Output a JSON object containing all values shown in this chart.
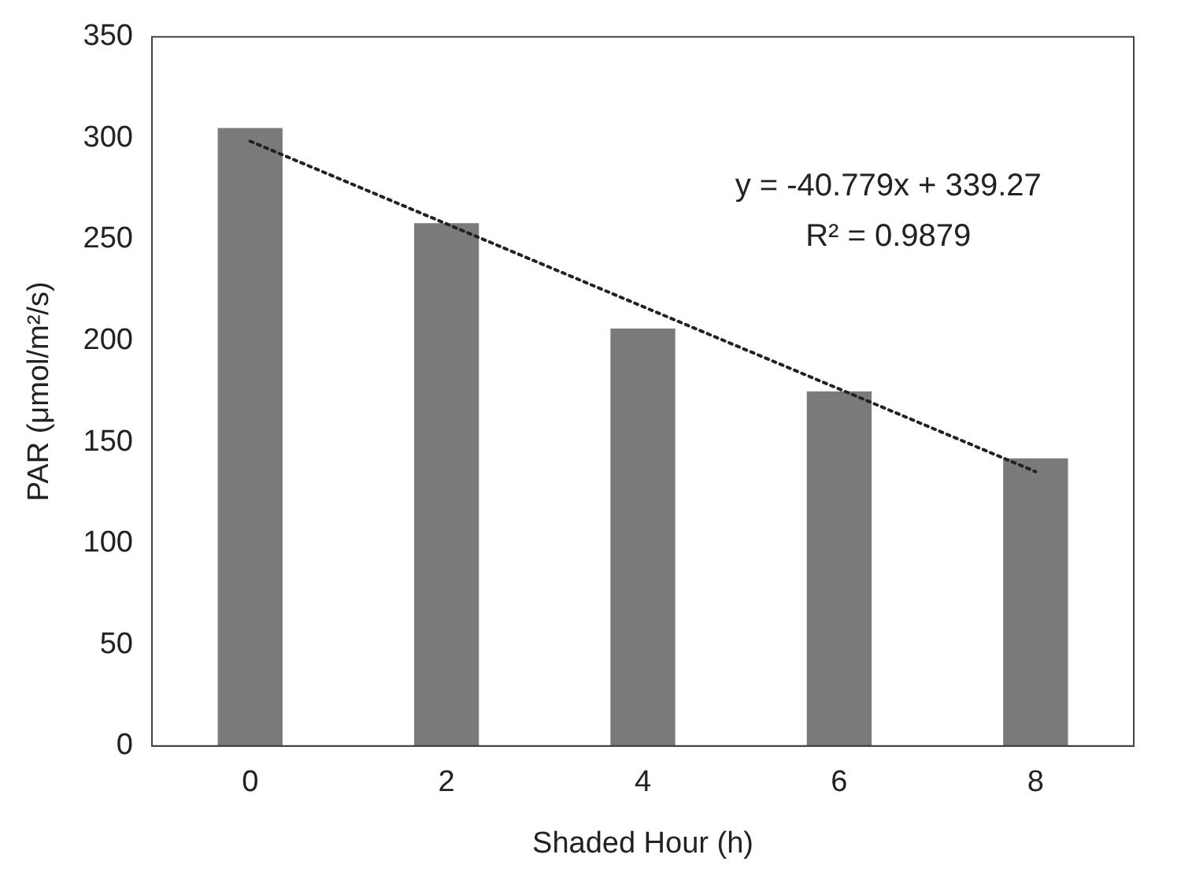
{
  "chart_data": {
    "type": "bar",
    "xlabel": "Shaded Hour (h)",
    "ylabel": "PAR (μmol/m²/s)",
    "categories": [
      "0",
      "2",
      "4",
      "6",
      "8"
    ],
    "series": [
      {
        "color": "#7a7a7a",
        "values": [
          305,
          258,
          206,
          175,
          142
        ]
      },
      {
        "type": "line",
        "color": "#222222",
        "x": [
          "0",
          "2",
          "4",
          "6",
          "8"
        ],
        "values": [
          298.5,
          257.7,
          216.9,
          176.2,
          135.4
        ],
        "line_style": "dotted",
        "marker": "none"
      }
    ],
    "ylim": [
      0,
      350
    ],
    "yticks": [
      0,
      50,
      100,
      150,
      200,
      250,
      300,
      350
    ],
    "grid": false,
    "legend": false,
    "annotations": [
      "y = -40.779x + 339.27",
      "R² = 0.9879"
    ]
  }
}
